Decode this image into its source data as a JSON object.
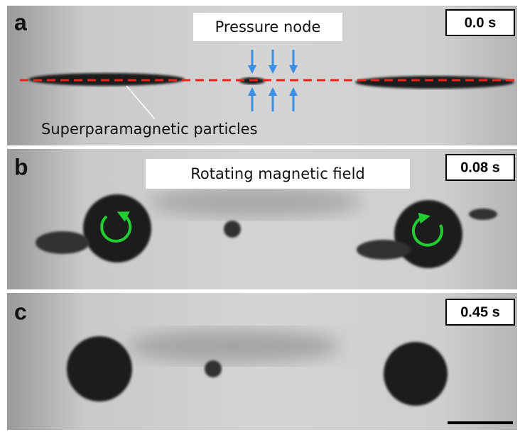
{
  "panels": [
    {
      "letter": "a",
      "time": "0.0 s",
      "labels": [
        "Pressure node",
        "Superparamagnetic particles"
      ]
    },
    {
      "letter": "b",
      "time": "0.08 s",
      "labels": [
        "Rotating magnetic field"
      ]
    },
    {
      "letter": "c",
      "time": "0.45 s"
    }
  ]
}
